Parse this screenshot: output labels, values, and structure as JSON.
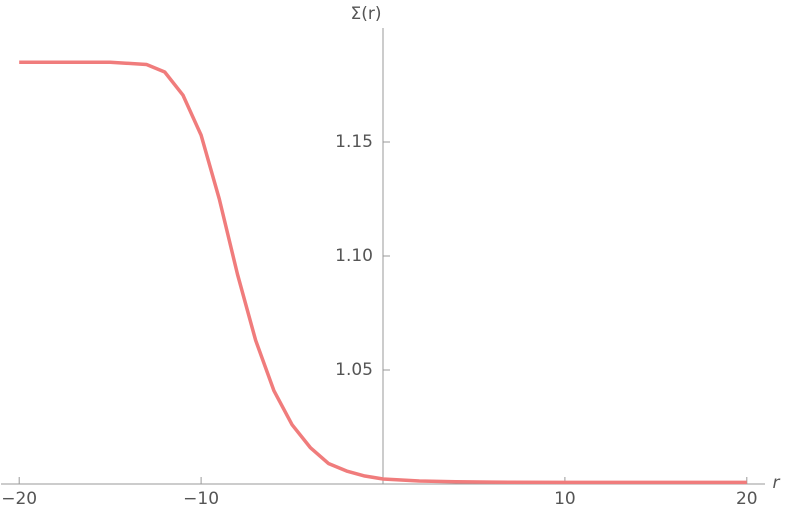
{
  "chart_data": {
    "type": "line",
    "y_label": "Σ(r)",
    "x_label": "r",
    "x": [
      -20,
      -15,
      -13,
      -12,
      -11,
      -10,
      -9,
      -8,
      -7,
      -6,
      -5,
      -4,
      -3,
      -2,
      -1,
      0,
      2,
      4,
      6,
      10,
      15,
      20
    ],
    "series": [
      {
        "color": "#f07c7c",
        "values": [
          1.185,
          1.185,
          1.184,
          1.1807,
          1.1706,
          1.153,
          1.125,
          1.092,
          1.063,
          1.041,
          1.026,
          1.016,
          1.009,
          1.0057,
          1.0035,
          1.0022,
          1.0013,
          1.001,
          1.0008,
          1.0007,
          1.0007,
          1.0007
        ]
      }
    ],
    "xlim": [
      -21,
      21
    ],
    "ylim": [
      1.0,
      1.2
    ],
    "xticks": [
      {
        "value": -20,
        "label": "−20"
      },
      {
        "value": -10,
        "label": "−10"
      },
      10,
      20
    ],
    "yticks": [
      1.05,
      {
        "value": 1.1,
        "label": "1.10"
      },
      1.15
    ]
  }
}
